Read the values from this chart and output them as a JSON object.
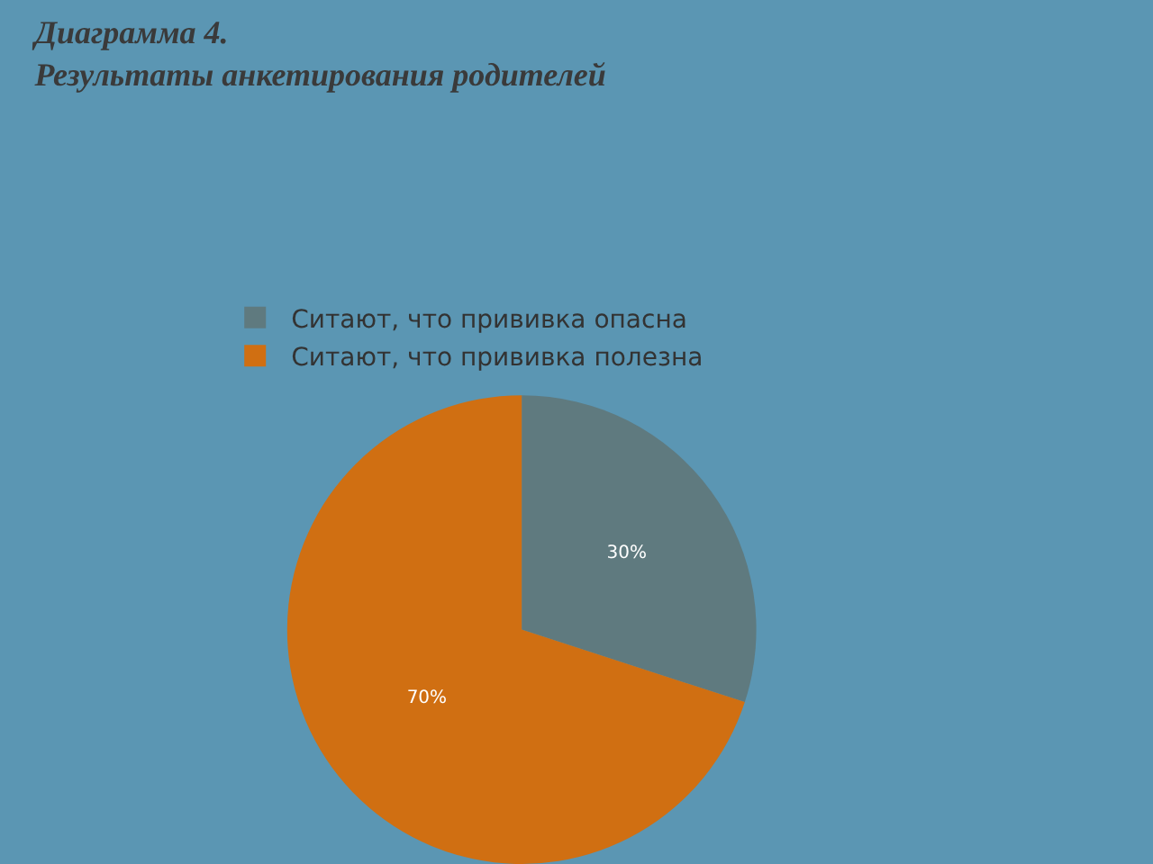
{
  "chart_data": {
    "type": "pie",
    "title": "Диаграмма 4.\nРезультаты анкетирования родителей",
    "categories": [
      "Ситают, что прививка опасна",
      "Ситают, что прививка полезна"
    ],
    "values": [
      30,
      70
    ],
    "colors": [
      "#5f7a7f",
      "#d06f12"
    ],
    "value_labels": [
      "30%",
      "70%"
    ],
    "legend": "top"
  }
}
